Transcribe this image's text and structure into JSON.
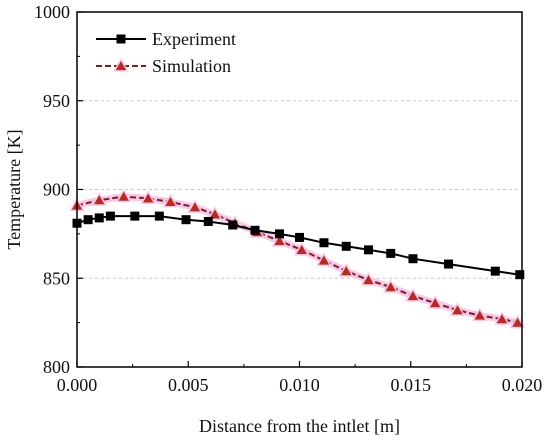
{
  "chart_data": {
    "type": "line",
    "title": "",
    "xlabel": "Distance from the intlet [m]",
    "ylabel": "Temperature [K]",
    "xlim": [
      0.0,
      0.02
    ],
    "ylim": [
      800,
      1000
    ],
    "x_ticks": [
      {
        "value": 0.0,
        "label": "0.000"
      },
      {
        "value": 0.005,
        "label": "0.005"
      },
      {
        "value": 0.01,
        "label": "0.010"
      },
      {
        "value": 0.015,
        "label": "0.015"
      },
      {
        "value": 0.02,
        "label": "0.020"
      }
    ],
    "y_ticks": [
      {
        "value": 800,
        "label": "800"
      },
      {
        "value": 850,
        "label": "850"
      },
      {
        "value": 900,
        "label": "900"
      },
      {
        "value": 950,
        "label": "950"
      },
      {
        "value": 1000,
        "label": "1000"
      }
    ],
    "grid": "horizontal dashed",
    "legend_position": "top-left",
    "series": [
      {
        "name": "Experiment",
        "color": "#000000",
        "line": "solid",
        "marker": "square",
        "points": [
          [
            0.0,
            881
          ],
          [
            0.0005,
            883
          ],
          [
            0.001,
            884
          ],
          [
            0.0015,
            885
          ],
          [
            0.0026,
            885
          ],
          [
            0.0037,
            885
          ],
          [
            0.0049,
            883
          ],
          [
            0.0059,
            882
          ],
          [
            0.007,
            880
          ],
          [
            0.008,
            877
          ],
          [
            0.0091,
            875
          ],
          [
            0.01,
            873
          ],
          [
            0.0111,
            870
          ],
          [
            0.0121,
            868
          ],
          [
            0.0131,
            866
          ],
          [
            0.0141,
            864
          ],
          [
            0.0151,
            861
          ],
          [
            0.0167,
            858
          ],
          [
            0.0188,
            854
          ],
          [
            0.0199,
            852
          ]
        ]
      },
      {
        "name": "Simulation",
        "color": "#8b1a1a",
        "marker_color": "#c0281c",
        "line": "dashed",
        "marker": "triangle",
        "points": [
          [
            0.0,
            891
          ],
          [
            0.001,
            894
          ],
          [
            0.0021,
            896
          ],
          [
            0.0032,
            895
          ],
          [
            0.0042,
            893
          ],
          [
            0.0053,
            890
          ],
          [
            0.0062,
            886
          ],
          [
            0.0071,
            881
          ],
          [
            0.0081,
            876
          ],
          [
            0.0091,
            871
          ],
          [
            0.0101,
            866
          ],
          [
            0.0111,
            860
          ],
          [
            0.0121,
            854
          ],
          [
            0.0131,
            849
          ],
          [
            0.0141,
            845
          ],
          [
            0.0151,
            840
          ],
          [
            0.0161,
            836
          ],
          [
            0.0171,
            832
          ],
          [
            0.0181,
            829
          ],
          [
            0.0191,
            827
          ],
          [
            0.0198,
            825
          ]
        ]
      }
    ]
  }
}
